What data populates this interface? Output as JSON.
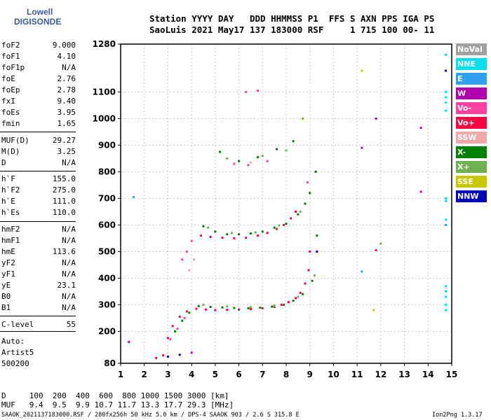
{
  "logo": {
    "line1": "Lowell",
    "line2": "DIGISONDE"
  },
  "header": {
    "line1": "Station YYYY DAY   DDD HHMMSS P1  FFS S AXN PPS IGA PS",
    "line2": "SaoLuis 2021 May17 137 183000 RSF     1 715 100 00- 11"
  },
  "params_a": [
    {
      "label": "foF2",
      "value": "9.000"
    },
    {
      "label": "foF1",
      "value": "4.10"
    },
    {
      "label": "foF1p",
      "value": "N/A"
    },
    {
      "label": "foE",
      "value": "2.76"
    },
    {
      "label": "foEp",
      "value": "2.78"
    },
    {
      "label": "fxI",
      "value": "9.40"
    },
    {
      "label": "foEs",
      "value": "3.95"
    },
    {
      "label": "fmin",
      "value": "1.65"
    }
  ],
  "params_b": [
    {
      "label": "MUF(D)",
      "value": "29.27"
    },
    {
      "label": "M(D)",
      "value": "3.25"
    },
    {
      "label": "D",
      "value": "N/A"
    }
  ],
  "params_c": [
    {
      "label": "h`F",
      "value": "155.0"
    },
    {
      "label": "h`F2",
      "value": "275.0"
    },
    {
      "label": "h`E",
      "value": "111.0"
    },
    {
      "label": "h`Es",
      "value": "110.0"
    }
  ],
  "params_d": [
    {
      "label": "hmF2",
      "value": "N/A"
    },
    {
      "label": "hmF1",
      "value": "N/A"
    },
    {
      "label": "hmE",
      "value": "113.6"
    },
    {
      "label": "yF2",
      "value": "N/A"
    },
    {
      "label": "yF1",
      "value": "N/A"
    },
    {
      "label": "yE",
      "value": "23.1"
    },
    {
      "label": "B0",
      "value": "N/A"
    },
    {
      "label": "B1",
      "value": "N/A"
    }
  ],
  "params_e": [
    {
      "label": "C-level",
      "value": "55"
    }
  ],
  "auto": {
    "line1": "Auto:",
    "line2": "Artist5",
    "line3": "500200"
  },
  "legend": [
    {
      "label": "NoVal",
      "color": "#a0a0a0"
    },
    {
      "label": "NNE",
      "color": "#00e0f0"
    },
    {
      "label": "E",
      "color": "#30a0f0"
    },
    {
      "label": "W",
      "color": "#b000b0"
    },
    {
      "label": "Vo-",
      "color": "#ff40a0"
    },
    {
      "label": "Vo+",
      "color": "#ff0040"
    },
    {
      "label": "SSW",
      "color": "#f0a8a8"
    },
    {
      "label": "X-",
      "color": "#008000"
    },
    {
      "label": "X+",
      "color": "#70b050"
    },
    {
      "label": "SSE",
      "color": "#c8c800"
    },
    {
      "label": "NNW",
      "color": "#0000c0"
    }
  ],
  "bottom": {
    "d_line": "D     100  200  400  600  800 1000 1500 3000 [km]",
    "muf_line": "MUF   9.4  9.5  9.9 10.7 11.7 13.3 17.7 29.3 [MHz]",
    "footer_left": "SAAOK_2021137183000.RSF / 280fx256h 50 kHz 5.0 km / DPS-4 SAAOK 903 / 2.6 S 315.8 E",
    "footer_right": "Ion2Png 1.3.17"
  },
  "chart_data": {
    "type": "scatter",
    "title": "",
    "xlabel": "",
    "ylabel": "",
    "xlim": [
      1,
      15
    ],
    "ylim": [
      80,
      1280
    ],
    "xticks": [
      "1",
      "2",
      "3",
      "4",
      "5",
      "6",
      "7",
      "8",
      "9",
      "10",
      "11",
      "12",
      "13",
      "14",
      "15"
    ],
    "yticks": [
      "80",
      "200",
      "300",
      "400",
      "500",
      "600",
      "700",
      "800",
      "900",
      "1000",
      "1100",
      "1280"
    ],
    "grid": "dashed",
    "series": [
      {
        "name": "Vo+",
        "color": "#ff0040",
        "points": [
          [
            4.2,
            285
          ],
          [
            4.6,
            282
          ],
          [
            5.0,
            280
          ],
          [
            5.5,
            281
          ],
          [
            6.0,
            282
          ],
          [
            6.5,
            284
          ],
          [
            7.0,
            287
          ],
          [
            7.5,
            292
          ],
          [
            7.8,
            300
          ],
          [
            8.1,
            310
          ],
          [
            8.4,
            325
          ],
          [
            8.6,
            345
          ],
          [
            8.8,
            380
          ],
          [
            8.95,
            430
          ],
          [
            9.0,
            500
          ],
          [
            4.4,
            560
          ],
          [
            4.8,
            555
          ],
          [
            5.3,
            552
          ],
          [
            5.8,
            550
          ],
          [
            6.3,
            552
          ],
          [
            6.8,
            560
          ],
          [
            7.2,
            570
          ],
          [
            7.6,
            585
          ],
          [
            7.9,
            600
          ],
          [
            8.2,
            625
          ],
          [
            8.4,
            650
          ],
          [
            3.0,
            175
          ],
          [
            3.2,
            220
          ],
          [
            3.5,
            255
          ],
          [
            3.8,
            275
          ],
          [
            2.5,
            100
          ],
          [
            2.8,
            110
          ],
          [
            11.8,
            505
          ]
        ]
      },
      {
        "name": "X-",
        "color": "#008000",
        "points": [
          [
            4.3,
            295
          ],
          [
            4.8,
            292
          ],
          [
            5.3,
            290
          ],
          [
            5.8,
            288
          ],
          [
            6.4,
            287
          ],
          [
            6.9,
            289
          ],
          [
            7.4,
            293
          ],
          [
            7.9,
            300
          ],
          [
            8.3,
            315
          ],
          [
            8.7,
            340
          ],
          [
            9.1,
            390
          ],
          [
            4.5,
            595
          ],
          [
            5.0,
            575
          ],
          [
            5.5,
            565
          ],
          [
            6.0,
            565
          ],
          [
            6.5,
            568
          ],
          [
            7.0,
            575
          ],
          [
            7.5,
            590
          ],
          [
            8.0,
            605
          ],
          [
            8.5,
            640
          ],
          [
            8.8,
            680
          ],
          [
            9.0,
            720
          ],
          [
            3.3,
            200
          ],
          [
            3.6,
            240
          ],
          [
            3.9,
            270
          ],
          [
            5.2,
            875
          ],
          [
            6.0,
            840
          ],
          [
            6.8,
            855
          ],
          [
            7.6,
            885
          ],
          [
            8.3,
            915
          ],
          [
            9.3,
            560
          ],
          [
            9.25,
            800
          ]
        ]
      },
      {
        "name": "X+",
        "color": "#70b050",
        "points": [
          [
            4.5,
            300
          ],
          [
            5.5,
            294
          ],
          [
            6.5,
            291
          ],
          [
            7.5,
            297
          ],
          [
            8.5,
            330
          ],
          [
            9.2,
            410
          ],
          [
            4.7,
            590
          ],
          [
            5.7,
            570
          ],
          [
            6.7,
            572
          ],
          [
            7.7,
            598
          ],
          [
            8.6,
            650
          ],
          [
            5.5,
            850
          ],
          [
            7.0,
            860
          ],
          [
            8.0,
            880
          ],
          [
            8.7,
            1000
          ],
          [
            11.2,
            1180
          ],
          [
            12.0,
            530
          ]
        ]
      },
      {
        "name": "Vo-",
        "color": "#ff40a0",
        "points": [
          [
            3.1,
            170
          ],
          [
            3.4,
            210
          ],
          [
            3.7,
            250
          ],
          [
            4.0,
            540
          ],
          [
            3.8,
            500
          ],
          [
            3.6,
            470
          ],
          [
            5.8,
            830
          ],
          [
            6.4,
            825
          ],
          [
            7.2,
            840
          ],
          [
            6.3,
            1100
          ],
          [
            6.8,
            1105
          ],
          [
            8.9,
            760
          ]
        ]
      },
      {
        "name": "W",
        "color": "#b000b0",
        "points": [
          [
            11.8,
            1000
          ],
          [
            11.2,
            890
          ],
          [
            13.7,
            965
          ],
          [
            13.7,
            725
          ],
          [
            1.35,
            160
          ],
          [
            4.0,
            120
          ]
        ]
      },
      {
        "name": "NNE",
        "color": "#00e0f0",
        "points": [
          [
            14.75,
            1240
          ],
          [
            14.75,
            1100
          ],
          [
            14.75,
            1080
          ],
          [
            14.75,
            1060
          ],
          [
            14.75,
            1030
          ],
          [
            14.75,
            700
          ],
          [
            14.75,
            690
          ],
          [
            14.75,
            620
          ],
          [
            14.75,
            370
          ],
          [
            14.75,
            350
          ],
          [
            14.75,
            330
          ],
          [
            14.75,
            300
          ],
          [
            14.75,
            280
          ]
        ]
      },
      {
        "name": "E",
        "color": "#30a0f0",
        "points": [
          [
            1.55,
            705
          ],
          [
            11.2,
            425
          ],
          [
            14.75,
            600
          ]
        ]
      },
      {
        "name": "NNW",
        "color": "#0000c0",
        "points": [
          [
            9.3,
            500
          ],
          [
            14.75,
            1180
          ],
          [
            3.0,
            105
          ],
          [
            3.5,
            112
          ]
        ]
      },
      {
        "name": "SSE",
        "color": "#c8c800",
        "points": [
          [
            11.2,
            1180
          ],
          [
            11.7,
            280
          ]
        ]
      },
      {
        "name": "SSW",
        "color": "#f0a8a8",
        "points": [
          [
            3.9,
            430
          ],
          [
            4.1,
            470
          ],
          [
            6.5,
            835
          ]
        ]
      }
    ]
  }
}
